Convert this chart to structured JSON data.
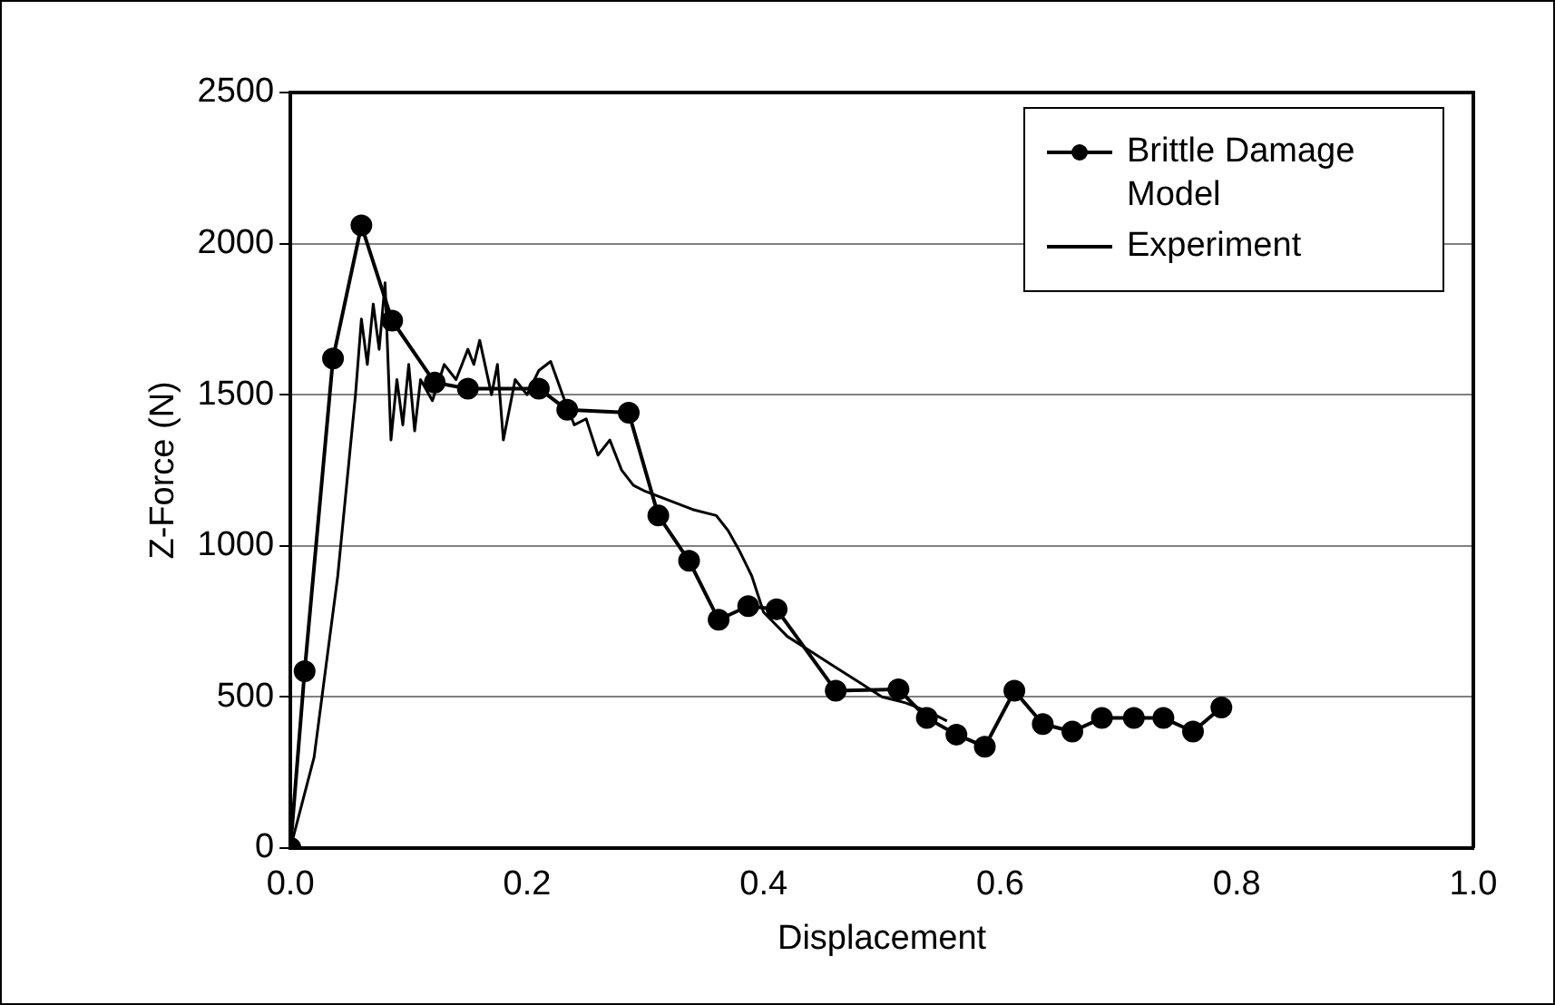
{
  "chart_data": {
    "type": "line",
    "xlabel": "Displacement",
    "ylabel": "Z-Force (N)",
    "xlim": [
      0,
      1
    ],
    "xticks": [
      {
        "value": 0,
        "label": "0.0"
      },
      {
        "value": 0.2,
        "label": "0.2"
      },
      {
        "value": 0.4,
        "label": "0.4"
      },
      {
        "value": 0.6,
        "label": "0.6"
      },
      {
        "value": 0.8,
        "label": "0.8"
      },
      {
        "value": 1,
        "label": "1.0"
      }
    ],
    "ylim": [
      0,
      2500
    ],
    "yticks": [
      0,
      500,
      1000,
      1500,
      2000,
      2500
    ],
    "grid": "y",
    "legend": "top right",
    "series": [
      {
        "name": "Brittle Damage Model",
        "color": "#000000",
        "marker": "circle",
        "x": [
          0,
          0.012,
          0.036,
          0.06,
          0.086,
          0.122,
          0.15,
          0.21,
          0.234,
          0.286,
          0.311,
          0.337,
          0.362,
          0.387,
          0.411,
          0.461,
          0.514,
          0.538,
          0.563,
          0.587,
          0.612,
          0.636,
          0.661,
          0.686,
          0.713,
          0.738,
          0.763,
          0.787
        ],
        "values": [
          0,
          585,
          1620,
          2060,
          1745,
          1540,
          1520,
          1520,
          1450,
          1440,
          1100,
          950,
          755,
          800,
          790,
          520,
          525,
          430,
          375,
          335,
          520,
          410,
          385,
          430,
          430,
          430,
          385,
          465
        ]
      },
      {
        "name": "Experiment",
        "color": "#000000",
        "marker": "none",
        "x": [
          0,
          0.01,
          0.02,
          0.03,
          0.04,
          0.05,
          0.055,
          0.06,
          0.065,
          0.07,
          0.075,
          0.08,
          0.085,
          0.09,
          0.095,
          0.1,
          0.105,
          0.11,
          0.12,
          0.13,
          0.14,
          0.15,
          0.155,
          0.16,
          0.17,
          0.175,
          0.18,
          0.19,
          0.2,
          0.21,
          0.22,
          0.23,
          0.24,
          0.25,
          0.26,
          0.27,
          0.28,
          0.29,
          0.3,
          0.32,
          0.34,
          0.36,
          0.37,
          0.38,
          0.39,
          0.4,
          0.42,
          0.44,
          0.46,
          0.48,
          0.5,
          0.52,
          0.54,
          0.555
        ],
        "values": [
          0,
          150,
          300,
          600,
          900,
          1300,
          1500,
          1750,
          1600,
          1800,
          1650,
          1870,
          1350,
          1550,
          1400,
          1600,
          1380,
          1550,
          1480,
          1600,
          1550,
          1650,
          1600,
          1680,
          1500,
          1600,
          1350,
          1550,
          1500,
          1580,
          1610,
          1500,
          1400,
          1420,
          1300,
          1350,
          1250,
          1200,
          1180,
          1150,
          1120,
          1100,
          1050,
          980,
          900,
          780,
          700,
          650,
          600,
          550,
          500,
          480,
          450,
          420
        ]
      }
    ]
  }
}
